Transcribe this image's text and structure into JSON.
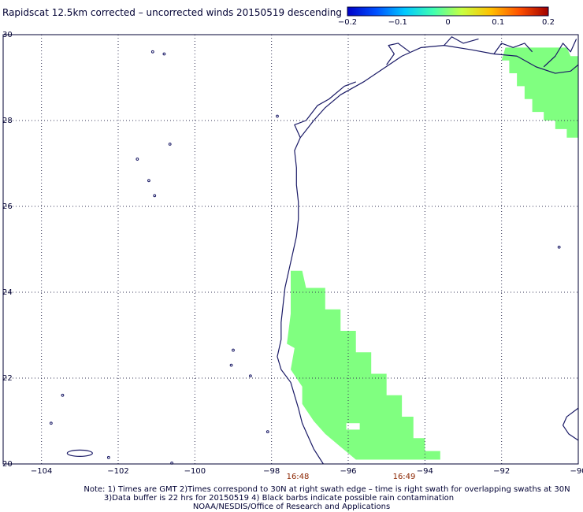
{
  "title": "Rapidscat 12.5km corrected – uncorrected winds 20150519 descending",
  "colorbar": {
    "ticks": [
      "−0.2",
      "−0.1",
      "0",
      "0.1",
      "0.2"
    ],
    "stops": [
      "#0000c8",
      "#0050ff",
      "#00c8ff",
      "#40ffb0",
      "#c8ff40",
      "#ffc000",
      "#ff5000",
      "#a00000"
    ]
  },
  "map": {
    "lon_labels": [
      "−104",
      "−102",
      "−100",
      "−98",
      "−96",
      "−94",
      "−92",
      "−90"
    ],
    "lat_labels": [
      "30",
      "28",
      "26",
      "24",
      "22",
      "20"
    ],
    "lon_range": [
      -105,
      -90
    ],
    "lat_range": [
      20,
      30
    ],
    "coast_color": "#1a1a66",
    "swath_color": "#80ff80"
  },
  "swath_times": [
    "16:48",
    "16:49"
  ],
  "time_color": "#8b2500",
  "notes": {
    "line1": "Note: 1) Times are GMT 2)Times correspond to 30N at right swath edge – time is right swath for overlapping swaths at 30N",
    "line2": "3)Data buffer is 22 hrs for 20150519 4) Black barbs indicate possible rain contamination",
    "line3": "NOAA/NESDIS/Office of Research and Applications"
  }
}
